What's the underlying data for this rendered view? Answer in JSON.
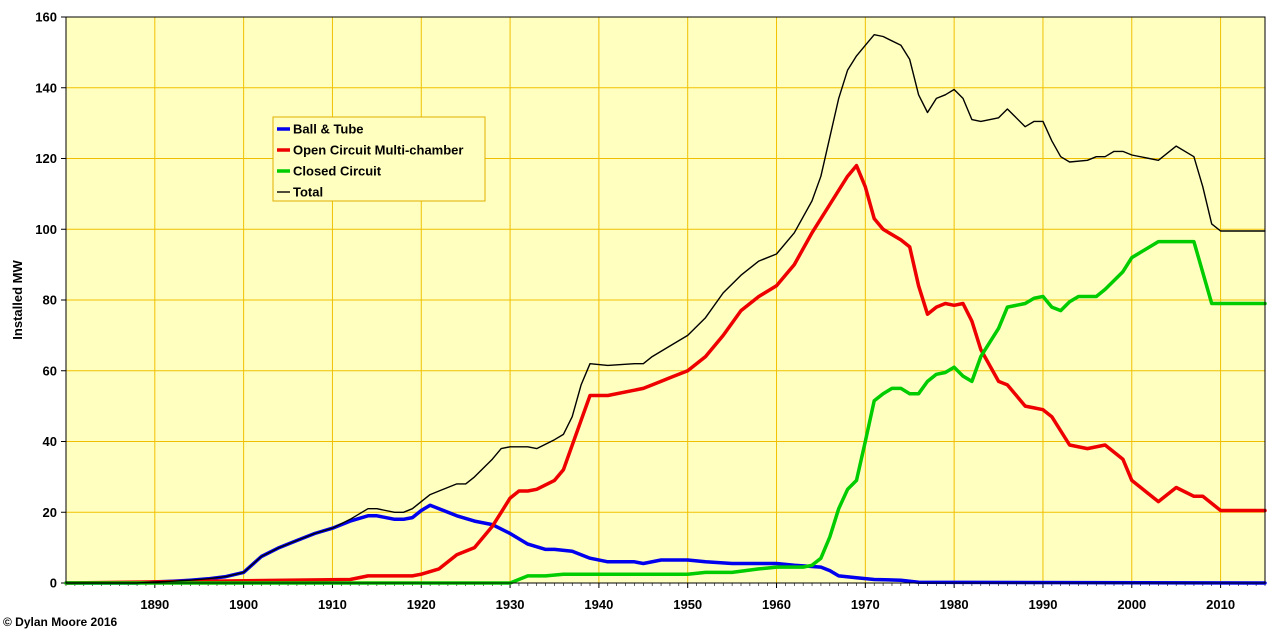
{
  "chart_data": {
    "type": "line",
    "title": "",
    "xlabel": "",
    "ylabel": "Installed MW",
    "xlim": [
      1880,
      2015
    ],
    "ylim": [
      0,
      160
    ],
    "yticks": [
      0,
      20,
      40,
      60,
      80,
      100,
      120,
      140,
      160
    ],
    "xticks": [
      1890,
      1900,
      1910,
      1920,
      1930,
      1940,
      1950,
      1960,
      1970,
      1980,
      1990,
      2000,
      2010
    ],
    "grid": true,
    "legend_position": "top-left",
    "colors": {
      "plot_background": "#ffffc0",
      "grid": "#f0c000",
      "legend_border": "#e0b000"
    },
    "credit": "© Dylan Moore 2016",
    "series": [
      {
        "name": "Ball & Tube",
        "color": "#0000ee",
        "width": 3.5,
        "x": [
          1880,
          1888,
          1890,
          1892,
          1894,
          1896,
          1898,
          1900,
          1902,
          1904,
          1906,
          1908,
          1910,
          1912,
          1914,
          1915,
          1917,
          1918,
          1919,
          1920,
          1921,
          1922,
          1924,
          1926,
          1928,
          1930,
          1932,
          1934,
          1935,
          1937,
          1939,
          1941,
          1944,
          1945,
          1947,
          1950,
          1952,
          1955,
          1960,
          1962,
          1965,
          1966,
          1967,
          1969,
          1971,
          1974,
          1976,
          2015
        ],
        "y": [
          0,
          0,
          0.3,
          0.5,
          0.8,
          1.2,
          1.8,
          3,
          7.5,
          10,
          12,
          14,
          15.5,
          17.5,
          19,
          19,
          18,
          18,
          18.5,
          20.5,
          22,
          21,
          19,
          17.5,
          16.5,
          14,
          11,
          9.5,
          9.5,
          9,
          7,
          6,
          6,
          5.5,
          6.5,
          6.5,
          6,
          5.5,
          5.5,
          5,
          4.5,
          3.5,
          2,
          1.5,
          1,
          0.8,
          0.2,
          0
        ]
      },
      {
        "name": "Open Circuit Multi-chamber",
        "color": "#ee0000",
        "width": 3.5,
        "x": [
          1880,
          1912,
          1914,
          1916,
          1918,
          1919,
          1920,
          1922,
          1924,
          1926,
          1928,
          1929,
          1930,
          1931,
          1932,
          1933,
          1935,
          1936,
          1938,
          1939,
          1941,
          1944,
          1945,
          1946,
          1948,
          1950,
          1952,
          1954,
          1956,
          1958,
          1960,
          1962,
          1964,
          1966,
          1968,
          1969,
          1970,
          1971,
          1972,
          1974,
          1975,
          1976,
          1977,
          1978,
          1979,
          1980,
          1981,
          1982,
          1983,
          1985,
          1986,
          1988,
          1989,
          1990,
          1991,
          1993,
          1995,
          1997,
          1999,
          2000,
          2003,
          2005,
          2007,
          2008,
          2010,
          2015
        ],
        "y": [
          0,
          1,
          2,
          2,
          2,
          2,
          2.5,
          4,
          8,
          10,
          16,
          20,
          24,
          26,
          26,
          26.5,
          29,
          32,
          46,
          53,
          53,
          54.5,
          55,
          56,
          58,
          60,
          64,
          70,
          77,
          81,
          84,
          90,
          99,
          107,
          115,
          118,
          112,
          103,
          100,
          97,
          95,
          84,
          76,
          78,
          79,
          78.5,
          79,
          74,
          66,
          57,
          56,
          50,
          49.5,
          49,
          47,
          39,
          38,
          39,
          35,
          29,
          23,
          27,
          24.5,
          24.5,
          20.5,
          20.5
        ]
      },
      {
        "name": "Closed Circuit",
        "color": "#00cc00",
        "width": 3.5,
        "x": [
          1880,
          1930,
          1932,
          1934,
          1936,
          1940,
          1945,
          1950,
          1952,
          1955,
          1958,
          1960,
          1962,
          1963,
          1964,
          1965,
          1966,
          1967,
          1968,
          1969,
          1970,
          1971,
          1972,
          1973,
          1974,
          1975,
          1976,
          1977,
          1978,
          1979,
          1980,
          1981,
          1982,
          1983,
          1985,
          1986,
          1988,
          1989,
          1990,
          1991,
          1992,
          1993,
          1994,
          1996,
          1997,
          1999,
          2000,
          2003,
          2005,
          2007,
          2009,
          2015
        ],
        "y": [
          0,
          0,
          2,
          2,
          2.5,
          2.5,
          2.5,
          2.5,
          3,
          3,
          4,
          4.5,
          4.5,
          4.5,
          5,
          7,
          13,
          21,
          26.5,
          29,
          40,
          51.5,
          53.5,
          55,
          55,
          53.5,
          53.5,
          57,
          59,
          59.5,
          61,
          58.5,
          57,
          64,
          72,
          78,
          79,
          80.5,
          81,
          78,
          77,
          79.5,
          81,
          81,
          83,
          88,
          92,
          96.5,
          96.5,
          96.5,
          79,
          79
        ]
      },
      {
        "name": "Total",
        "color": "#000000",
        "width": 1.4,
        "x": [
          1880,
          1888,
          1890,
          1892,
          1894,
          1896,
          1898,
          1900,
          1902,
          1904,
          1906,
          1908,
          1910,
          1912,
          1914,
          1915,
          1916,
          1917,
          1918,
          1919,
          1920,
          1921,
          1922,
          1924,
          1925,
          1926,
          1928,
          1929,
          1930,
          1931,
          1932,
          1933,
          1935,
          1936,
          1937,
          1938,
          1939,
          1941,
          1944,
          1945,
          1946,
          1948,
          1950,
          1952,
          1954,
          1956,
          1958,
          1960,
          1962,
          1964,
          1965,
          1966,
          1967,
          1968,
          1969,
          1970,
          1971,
          1972,
          1974,
          1975,
          1976,
          1977,
          1978,
          1979,
          1980,
          1981,
          1982,
          1983,
          1985,
          1986,
          1988,
          1989,
          1990,
          1991,
          1992,
          1993,
          1995,
          1996,
          1997,
          1998,
          1999,
          2000,
          2003,
          2005,
          2007,
          2008,
          2009,
          2010,
          2015
        ],
        "y": [
          0,
          0,
          0.3,
          0.5,
          0.8,
          1.2,
          1.8,
          3,
          7.5,
          10,
          12,
          14,
          15.5,
          18,
          21,
          21,
          20.5,
          20,
          20,
          21,
          23,
          25,
          26,
          28,
          28,
          30,
          35,
          38,
          38.5,
          38.5,
          38.5,
          38,
          40.5,
          42,
          47,
          56,
          62,
          61.5,
          62,
          62,
          64,
          67,
          70,
          75,
          82,
          87,
          91,
          93,
          99,
          108,
          115,
          126,
          137,
          145,
          149,
          152,
          155,
          154.5,
          152,
          148,
          138,
          133,
          137,
          138,
          139.5,
          137,
          131,
          130.5,
          131.5,
          134,
          129,
          130.5,
          130.5,
          125,
          120.5,
          119,
          119.5,
          120.5,
          120.5,
          122,
          122,
          121,
          119.5,
          123.5,
          120.5,
          112,
          101.5,
          99.5,
          99.5
        ]
      }
    ]
  }
}
